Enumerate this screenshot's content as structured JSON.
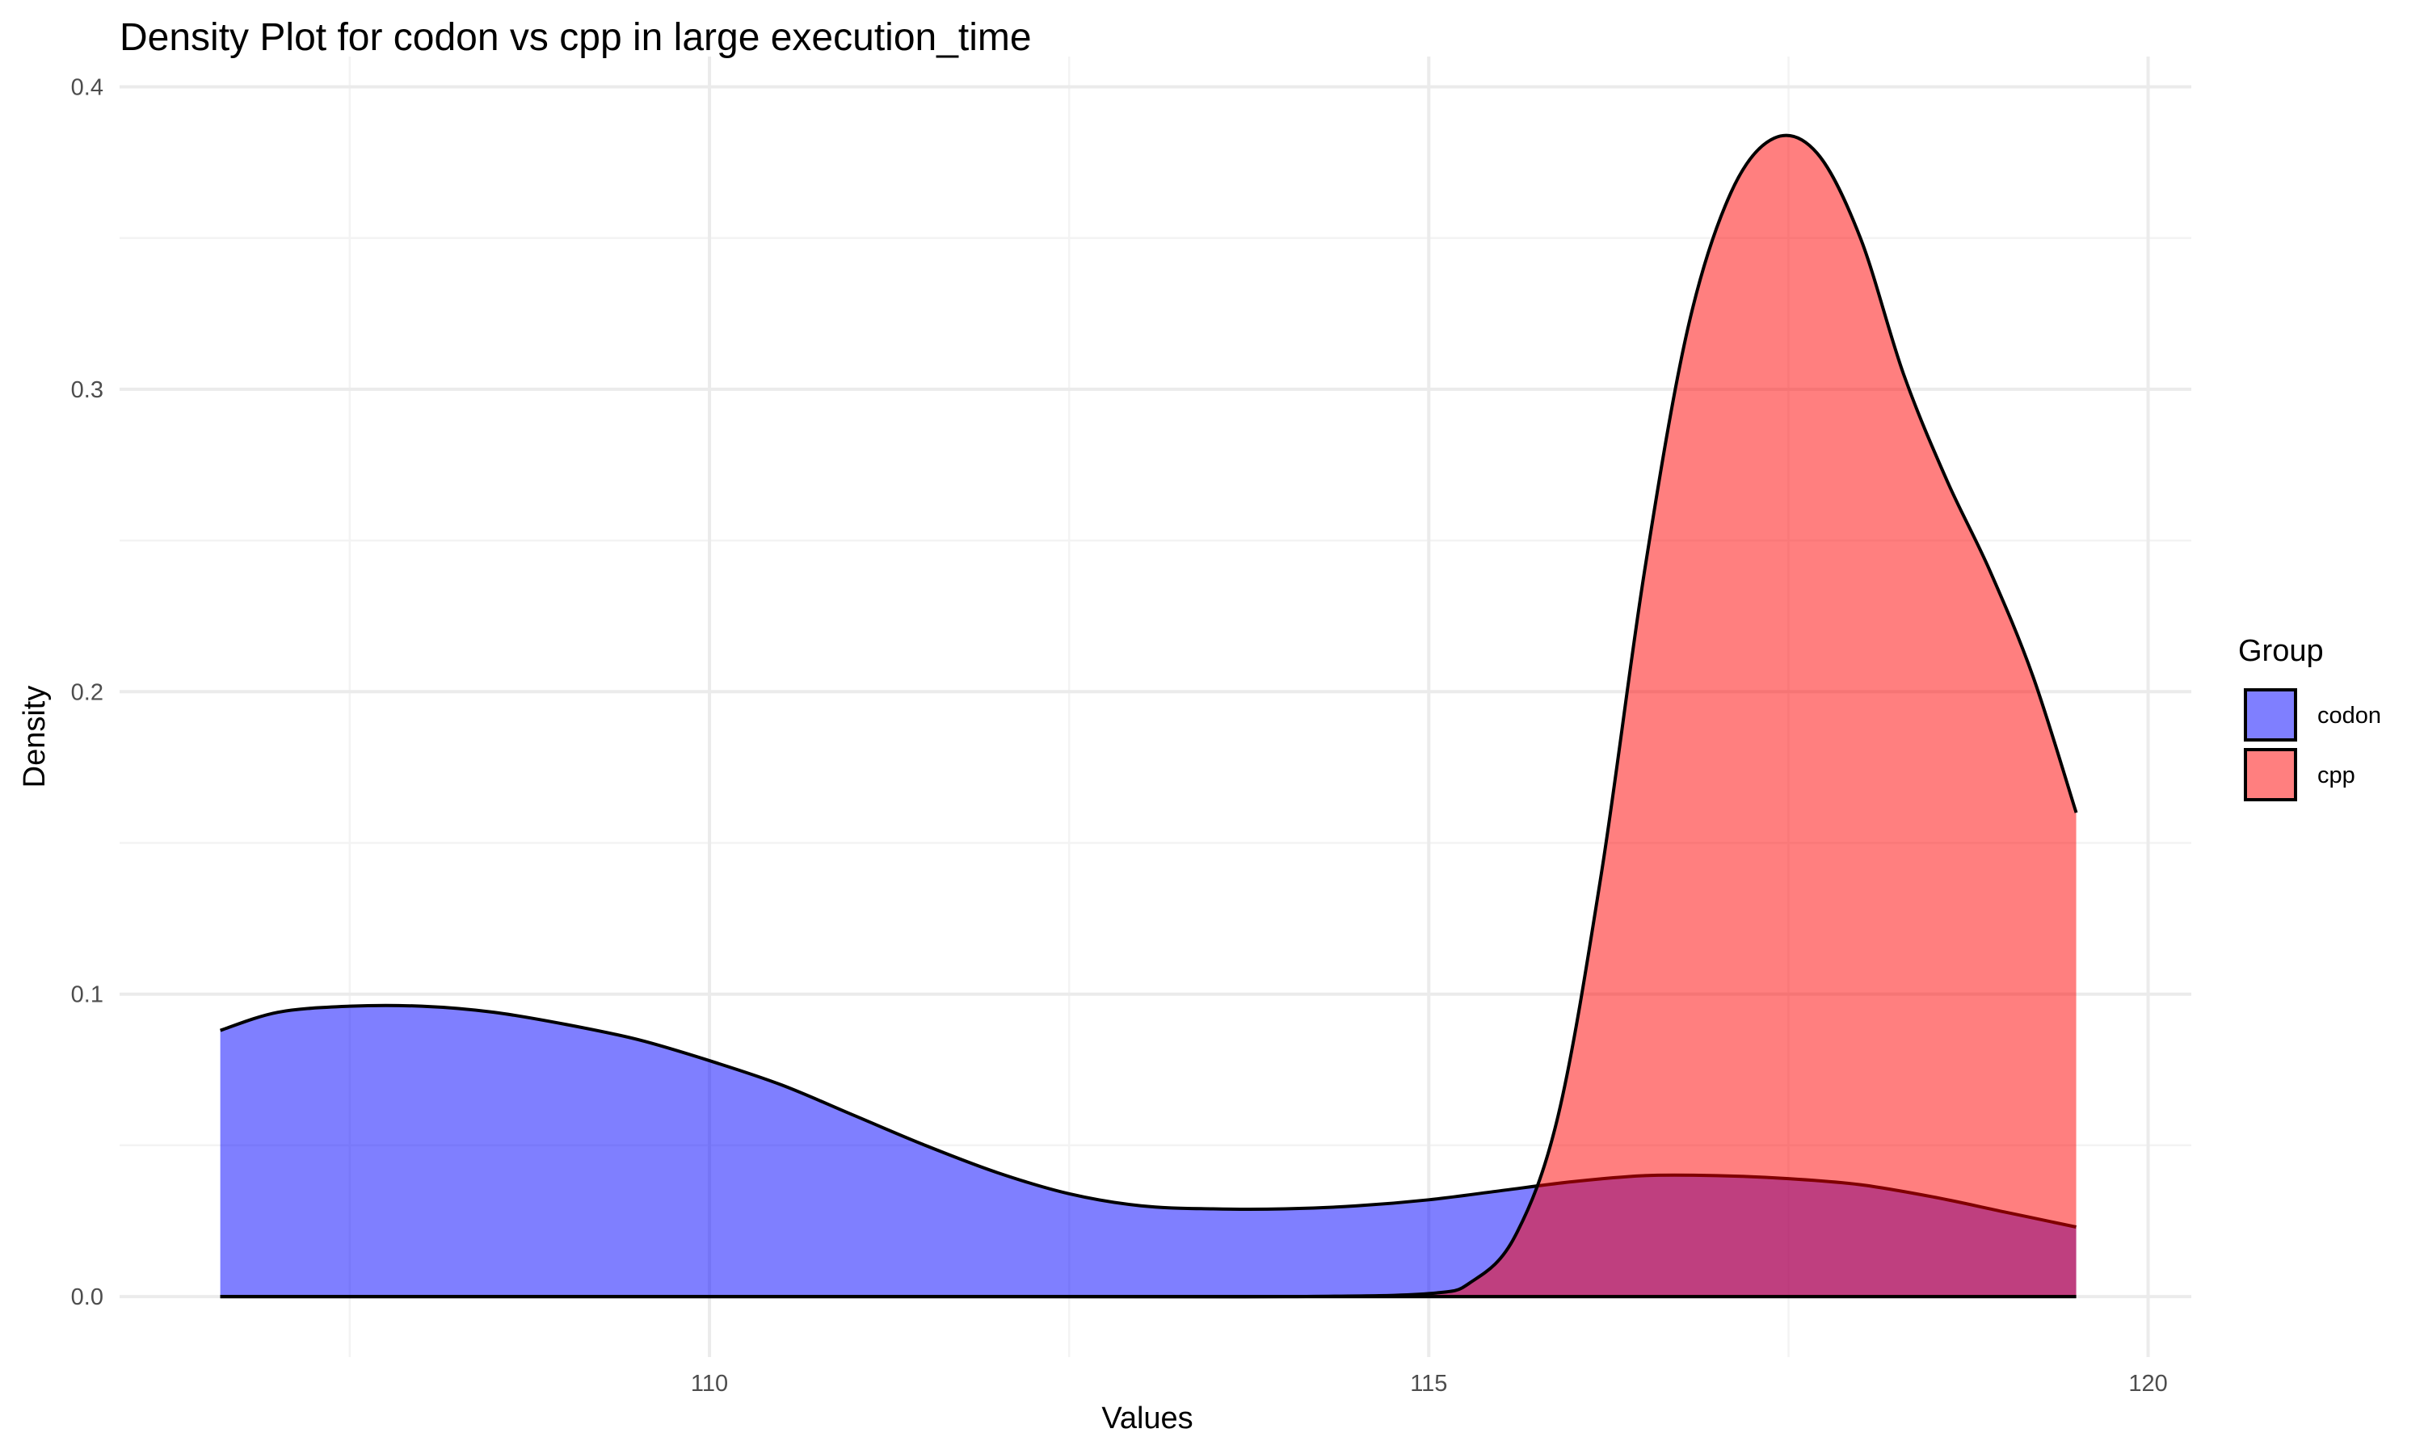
{
  "chart_data": {
    "type": "area",
    "title": "Density Plot for codon vs cpp in large execution_time",
    "xlabel": "Values",
    "ylabel": "Density",
    "xlim": [
      105.9,
      120.3
    ],
    "ylim": [
      -0.02,
      0.41
    ],
    "x_ticks": [
      110,
      115,
      120
    ],
    "x_tick_labels": [
      "110",
      "115",
      "120"
    ],
    "y_ticks": [
      0.0,
      0.1,
      0.2,
      0.3,
      0.4
    ],
    "y_tick_labels": [
      "0.0",
      "0.1",
      "0.2",
      "0.3",
      "0.4"
    ],
    "grid": true,
    "legend": {
      "title": "Group",
      "position": "right"
    },
    "series": [
      {
        "name": "codon",
        "color": "#0000FF",
        "opacity": 0.5,
        "x": [
          106.6,
          107.0,
          107.5,
          108.0,
          108.5,
          109.0,
          109.5,
          110.0,
          110.5,
          111.0,
          111.5,
          112.0,
          112.5,
          113.0,
          113.5,
          114.0,
          114.5,
          115.0,
          115.5,
          116.0,
          116.5,
          117.0,
          117.5,
          118.0,
          118.5,
          119.0,
          119.5
        ],
        "y": [
          0.088,
          0.094,
          0.096,
          0.096,
          0.094,
          0.09,
          0.085,
          0.078,
          0.07,
          0.06,
          0.05,
          0.041,
          0.034,
          0.03,
          0.029,
          0.029,
          0.03,
          0.032,
          0.035,
          0.038,
          0.04,
          0.04,
          0.039,
          0.037,
          0.033,
          0.028,
          0.023
        ]
      },
      {
        "name": "cpp",
        "color": "#FF0000",
        "opacity": 0.5,
        "x": [
          106.6,
          112.0,
          114.0,
          115.0,
          115.3,
          115.6,
          115.9,
          116.2,
          116.5,
          116.8,
          117.1,
          117.4,
          117.7,
          118.0,
          118.3,
          118.6,
          118.9,
          119.2,
          119.5
        ],
        "y": [
          0.0,
          0.0,
          0.0,
          0.001,
          0.005,
          0.02,
          0.06,
          0.14,
          0.24,
          0.32,
          0.365,
          0.383,
          0.378,
          0.35,
          0.305,
          0.27,
          0.24,
          0.205,
          0.16
        ]
      }
    ]
  }
}
